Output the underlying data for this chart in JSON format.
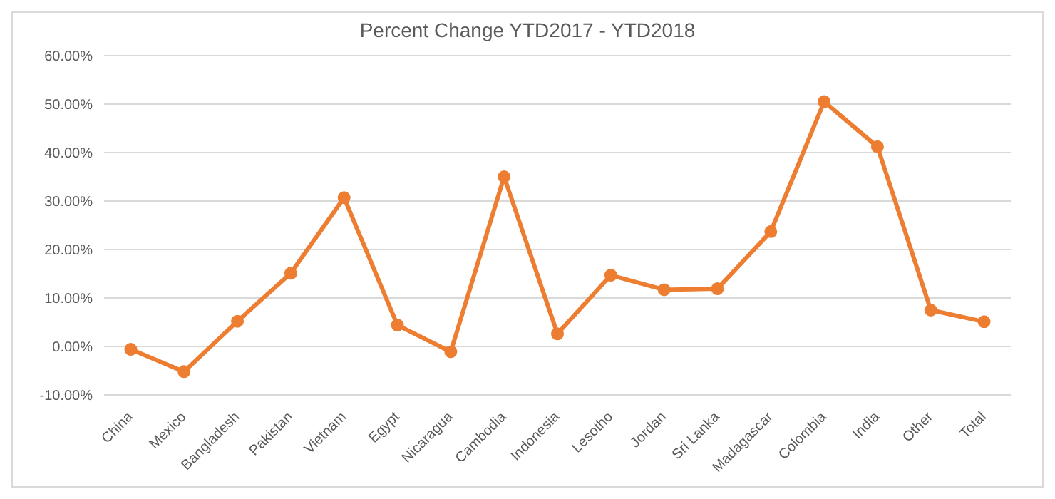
{
  "chart_data": {
    "type": "line",
    "title": "Percent Change YTD2017 - YTD2018",
    "categories": [
      "China",
      "Mexico",
      "Bangladesh",
      "Pakistan",
      "Vietnam",
      "Egypt",
      "Nicaragua",
      "Cambodia",
      "Indonesia",
      "Lesotho",
      "Jordan",
      "Sri Lanka",
      "Madagascar",
      "Colombia",
      "India",
      "Other",
      "Total"
    ],
    "series": [
      {
        "color": "#ed7d31",
        "values": [
          -0.6,
          -5.2,
          5.2,
          15.1,
          30.7,
          4.4,
          -1.1,
          35.0,
          2.6,
          14.7,
          11.7,
          11.9,
          23.7,
          50.5,
          41.2,
          7.5,
          5.1
        ]
      }
    ],
    "ylim": [
      -10,
      60
    ],
    "yticks": [
      {
        "value": -10,
        "label": "-10.00%"
      },
      {
        "value": 0,
        "label": "0.00%"
      },
      {
        "value": 10,
        "label": "10.00%"
      },
      {
        "value": 20,
        "label": "20.00%"
      },
      {
        "value": 30,
        "label": "30.00%"
      },
      {
        "value": 40,
        "label": "40.00%"
      },
      {
        "value": 50,
        "label": "50.00%"
      },
      {
        "value": 60,
        "label": "60.00%"
      }
    ],
    "grid": "y",
    "legend": false,
    "marker": "circle",
    "line_style": "solid"
  }
}
